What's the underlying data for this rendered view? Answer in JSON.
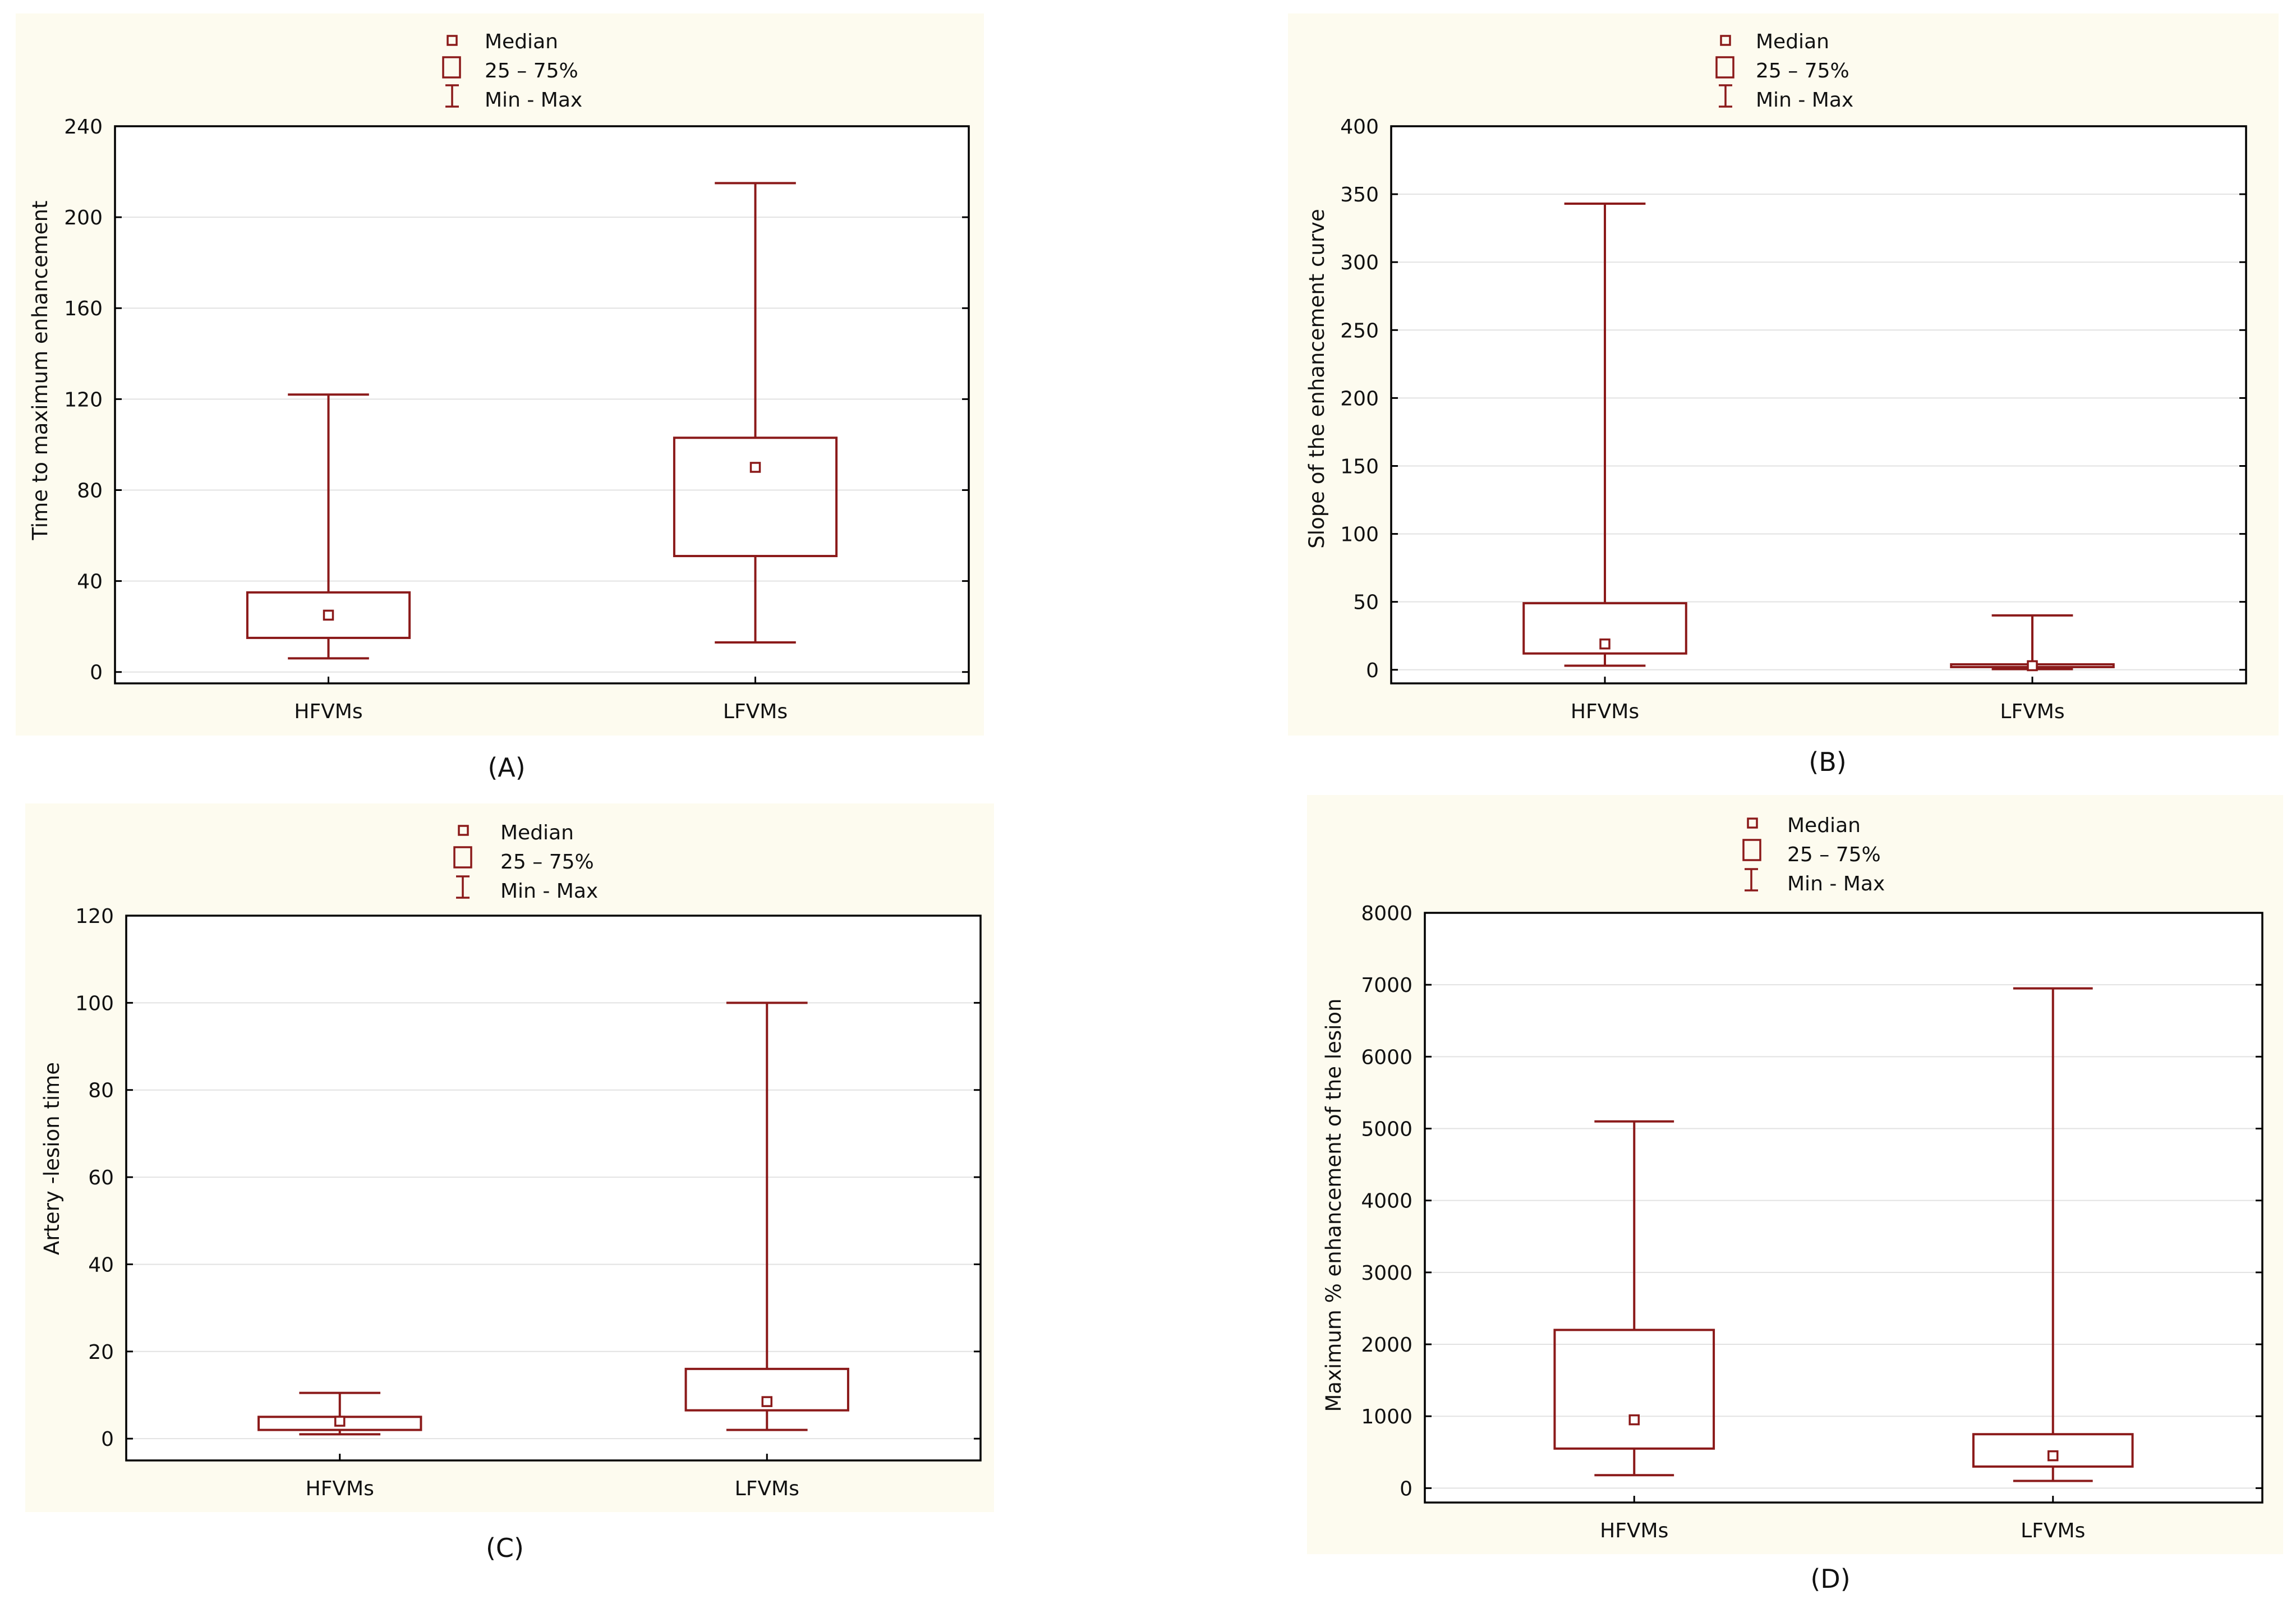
{
  "colors": {
    "box": "#8b1a1a",
    "panel_bg": "#fdfbef",
    "plot_bg": "#ffffff",
    "axis": "#000000",
    "grid": "#e2e2e2"
  },
  "legend_labels": {
    "median": "Median",
    "iqr": "25 – 75%",
    "range": "Min - Max"
  },
  "chart_data": [
    {
      "id": "A",
      "type": "box",
      "caption": "(A)",
      "ylabel": "Time to maximum enhancement",
      "xlabel": "",
      "categories": [
        "HFVMs",
        "LFVMs"
      ],
      "ylim": [
        -5,
        240
      ],
      "yticks": [
        0,
        40,
        80,
        120,
        160,
        200,
        240
      ],
      "grid": true,
      "legend_position": "top-center",
      "series": [
        {
          "name": "HFVMs",
          "min": 6,
          "q1": 15,
          "median": 25,
          "q3": 35,
          "max": 122
        },
        {
          "name": "LFVMs",
          "min": 13,
          "q1": 51,
          "median": 90,
          "q3": 103,
          "max": 215
        }
      ]
    },
    {
      "id": "B",
      "type": "box",
      "caption": "(B)",
      "ylabel": "Slope of the enhancement curve",
      "xlabel": "",
      "categories": [
        "HFVMs",
        "LFVMs"
      ],
      "ylim": [
        -10,
        400
      ],
      "yticks": [
        0,
        50,
        100,
        150,
        200,
        250,
        300,
        350,
        400
      ],
      "grid": true,
      "legend_position": "top-center",
      "series": [
        {
          "name": "HFVMs",
          "min": 3,
          "q1": 12,
          "median": 19,
          "q3": 49,
          "max": 343
        },
        {
          "name": "LFVMs",
          "min": 0.5,
          "q1": 2,
          "median": 3,
          "q3": 4,
          "max": 40
        }
      ]
    },
    {
      "id": "C",
      "type": "box",
      "caption": "(C)",
      "ylabel": "Artery -lesion time",
      "xlabel": "",
      "categories": [
        "HFVMs",
        "LFVMs"
      ],
      "ylim": [
        -5,
        120
      ],
      "yticks": [
        0,
        20,
        40,
        60,
        80,
        100,
        120
      ],
      "grid": true,
      "legend_position": "top-center",
      "series": [
        {
          "name": "HFVMs",
          "min": 1,
          "q1": 2,
          "median": 4,
          "q3": 5,
          "max": 10.5
        },
        {
          "name": "LFVMs",
          "min": 2,
          "q1": 6.5,
          "median": 8.5,
          "q3": 16,
          "max": 100
        }
      ]
    },
    {
      "id": "D",
      "type": "box",
      "caption": "(D)",
      "ylabel": "Maximum % enhancement of the lesion",
      "xlabel": "",
      "categories": [
        "HFVMs",
        "LFVMs"
      ],
      "ylim": [
        -200,
        8000
      ],
      "yticks": [
        0,
        1000,
        2000,
        3000,
        4000,
        5000,
        6000,
        7000,
        8000
      ],
      "grid": true,
      "legend_position": "top-center",
      "series": [
        {
          "name": "HFVMs",
          "min": 180,
          "q1": 550,
          "median": 950,
          "q3": 2200,
          "max": 5100
        },
        {
          "name": "LFVMs",
          "min": 100,
          "q1": 300,
          "median": 450,
          "q3": 750,
          "max": 6950
        }
      ]
    }
  ]
}
